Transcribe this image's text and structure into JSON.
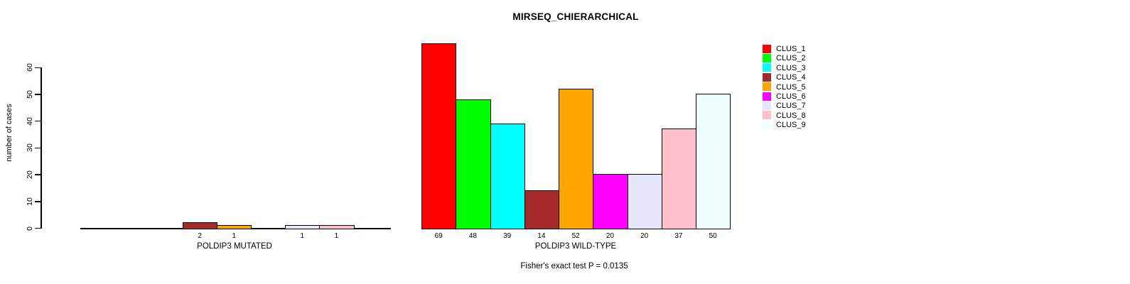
{
  "title": "MIRSEQ_CHIERARCHICAL",
  "chart_data": {
    "type": "bar",
    "title": "MIRSEQ_CHIERARCHICAL",
    "ylabel": "number of cases",
    "xlabel": "",
    "yticks": [
      0,
      10,
      20,
      30,
      40,
      50,
      60
    ],
    "ylim": [
      0,
      69
    ],
    "grid": false,
    "legend_position": "top-right",
    "clusters": [
      "CLUS_1",
      "CLUS_2",
      "CLUS_3",
      "CLUS_4",
      "CLUS_5",
      "CLUS_6",
      "CLUS_7",
      "CLUS_8",
      "CLUS_9"
    ],
    "cluster_colors": [
      "#ff0000",
      "#00ff00",
      "#00ffff",
      "#a52a2a",
      "#ffa500",
      "#ff00ff",
      "#e6e6fa",
      "#ffc0cb",
      "#f0ffff"
    ],
    "bar_border_color": "#000000",
    "groups": [
      {
        "label": "POLDIP3 MUTATED",
        "values": [
          0,
          0,
          0,
          2,
          1,
          0,
          1,
          1,
          0
        ],
        "bar_labels": [
          "",
          "",
          "",
          "2",
          "1",
          "",
          "1",
          "1",
          ""
        ]
      },
      {
        "label": "POLDIP3 WILD-TYPE",
        "values": [
          69,
          48,
          39,
          14,
          52,
          20,
          20,
          37,
          50
        ],
        "bar_labels": [
          "69",
          "48",
          "39",
          "14",
          "52",
          "20",
          "20",
          "37",
          "50"
        ]
      }
    ],
    "annotation": "Fisher's exact test P = 0.0135"
  }
}
